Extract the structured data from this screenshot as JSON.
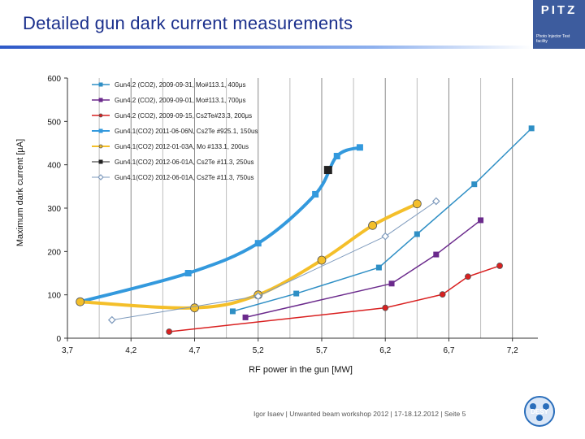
{
  "slide": {
    "title": "Detailed gun dark current measurements",
    "logo_text": "PITZ",
    "logo_subtitle": "Photo Injector Test facility",
    "footer": "Igor Isaev | Unwanted beam workshop 2012 | 17-18.12.2012 | Seite 5",
    "desy_logo": "DESY"
  },
  "chart_data": {
    "type": "line",
    "xlabel": "RF power in the gun [MW]",
    "ylabel": "Maximum dark current [µA]",
    "xlim": [
      3.7,
      7.4
    ],
    "ylim": [
      0,
      600
    ],
    "x_ticks": [
      "3,7",
      "4,2",
      "4,7",
      "5,2",
      "5,7",
      "6,2",
      "6,7",
      "7,2"
    ],
    "y_ticks": [
      "0",
      "100",
      "200",
      "300",
      "400",
      "500",
      "600"
    ],
    "grid_vertical": true,
    "legend_position": "top-left",
    "series": [
      {
        "name": "Gun4.2 (CO2), 2009-09-31, Mo#113.1, 400μs",
        "color": "#2f8fc5",
        "marker": "square",
        "smooth": false,
        "width": 1.5,
        "x": [
          5.0,
          5.5,
          6.15,
          6.45,
          6.9,
          7.35
        ],
        "y": [
          62,
          103,
          163,
          240,
          355,
          484
        ]
      },
      {
        "name": "Gun4.2 (CO2), 2009-09-01, Mo#113.1, 700μs",
        "color": "#6b2a8c",
        "marker": "square",
        "smooth": false,
        "width": 1.5,
        "x": [
          5.1,
          6.25,
          6.6,
          6.95
        ],
        "y": [
          48,
          126,
          193,
          272
        ]
      },
      {
        "name": "Gun4.2 (CO2), 2009-09-15, Cs2Te#23.3, 200μs",
        "color": "#d92020",
        "marker": "circle",
        "smooth": false,
        "width": 1.5,
        "x": [
          4.5,
          6.2,
          6.65,
          6.85,
          7.1
        ],
        "y": [
          15,
          70,
          101,
          142,
          167
        ]
      },
      {
        "name": "Gun4.1(CO2) 2011-06-06N, Cs2Te #925.1, 150us",
        "color": "#3399dd",
        "marker": "square",
        "smooth": true,
        "width": 4,
        "x": [
          3.8,
          4.65,
          5.2,
          5.65,
          5.82,
          6.0
        ],
        "y": [
          84,
          150,
          219,
          332,
          420,
          440
        ]
      },
      {
        "name": "Gun4.1(CO2) 2012-01-03A, Mo #133.1, 200us",
        "color": "#f4bf2a",
        "marker": "circle",
        "smooth": true,
        "width": 4,
        "x": [
          3.8,
          4.7,
          5.2,
          5.7,
          6.1,
          6.45
        ],
        "y": [
          84,
          70,
          100,
          180,
          260,
          310
        ]
      },
      {
        "name": "Gun4.1(CO2) 2012-06-01A, Cs2Te #11.3, 250us",
        "color": "#222222",
        "marker": "square",
        "smooth": false,
        "width": 1,
        "x": [
          5.75
        ],
        "y": [
          388
        ]
      },
      {
        "name": "Gun4.1(CO2) 2012-06-01A, Cs2Te #11.3, 750us",
        "color": "#7f9bbd",
        "marker": "diamond",
        "smooth": false,
        "width": 1,
        "x": [
          4.05,
          5.2,
          6.2,
          6.6
        ],
        "y": [
          42,
          97,
          235,
          316
        ]
      }
    ]
  }
}
